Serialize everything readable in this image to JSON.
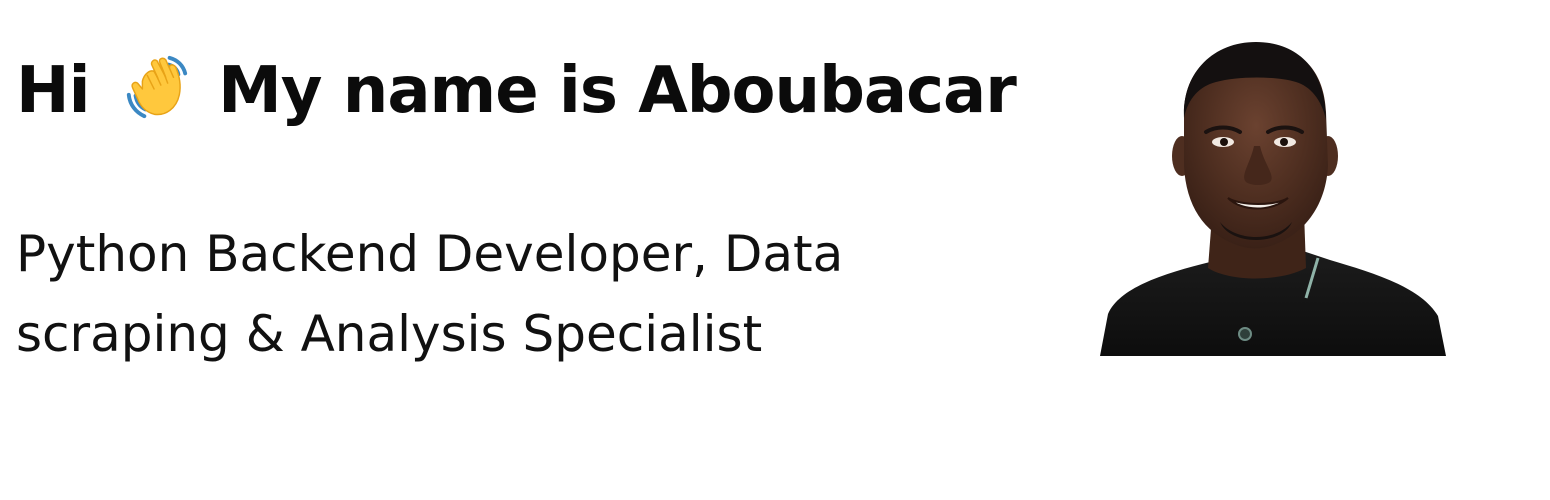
{
  "hero": {
    "greeting": "Hi",
    "wave_icon": "waving-hand-emoji",
    "name_line": "My name is Aboubacar",
    "tagline_line1": "Python Backend Developer, Data",
    "tagline_line2": "scraping & Analysis Specialist"
  },
  "colors": {
    "heading": "#0b0b0b",
    "text": "#111111",
    "background": "#ffffff",
    "wave_yellow": "#FFC83D",
    "wave_motion_lines": "#3B88C3"
  }
}
